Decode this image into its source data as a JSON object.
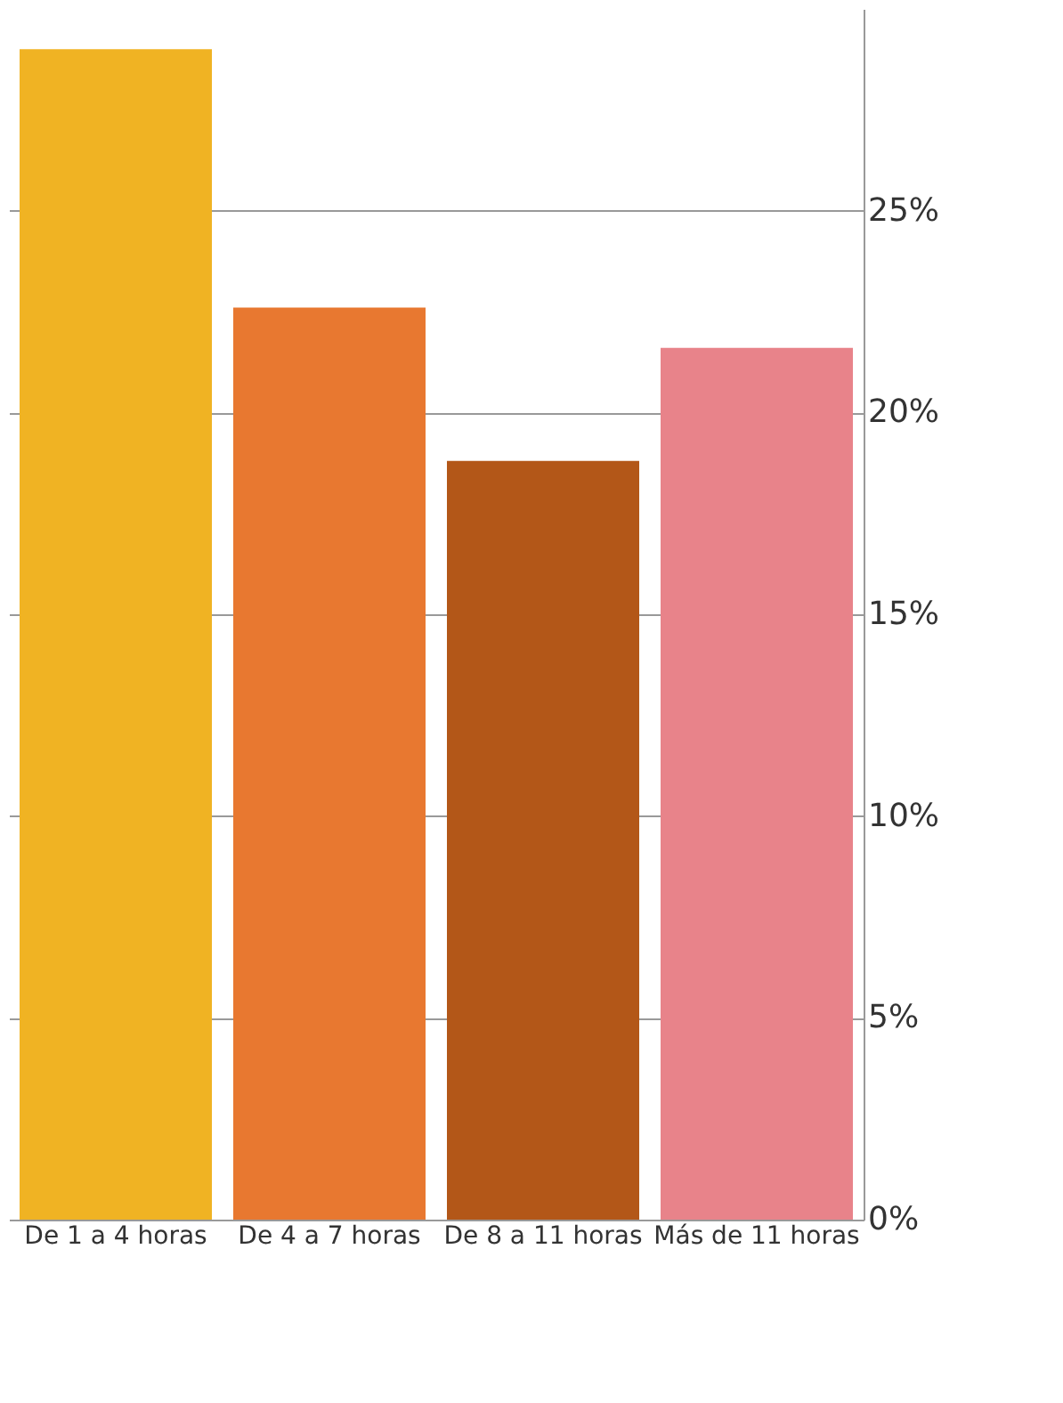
{
  "chart_data": {
    "type": "bar",
    "categories": [
      "De 1 a 4 horas",
      "De 4 a 7 horas",
      "De 8 a 11 horas",
      "Más de 11 horas"
    ],
    "values": [
      29,
      22.6,
      18.8,
      21.6
    ],
    "colors": [
      "#f0b323",
      "#e87830",
      "#b35718",
      "#e8838a"
    ],
    "ylim": [
      0,
      30
    ],
    "yticks": [
      {
        "value": 0,
        "label": "0%"
      },
      {
        "value": 5,
        "label": "5%"
      },
      {
        "value": 10,
        "label": "10%"
      },
      {
        "value": 15,
        "label": "15%"
      },
      {
        "value": 20,
        "label": "20%"
      },
      {
        "value": 25,
        "label": "25%"
      }
    ],
    "grid": "y"
  }
}
